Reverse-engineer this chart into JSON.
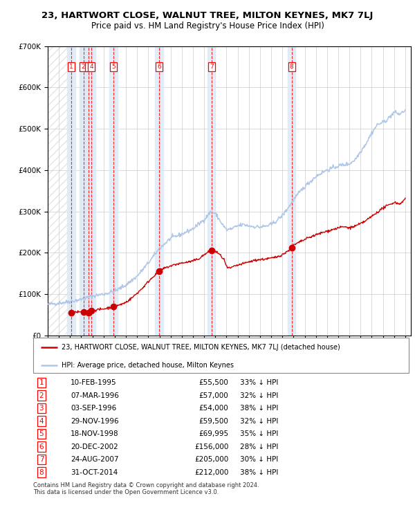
{
  "title": "23, HARTWORT CLOSE, WALNUT TREE, MILTON KEYNES, MK7 7LJ",
  "subtitle": "Price paid vs. HM Land Registry's House Price Index (HPI)",
  "transactions": [
    {
      "num": 1,
      "date": "10-FEB-1995",
      "date_val": 1995.11,
      "price": 55500,
      "pct": "33% ↓ HPI"
    },
    {
      "num": 2,
      "date": "07-MAR-1996",
      "date_val": 1996.19,
      "price": 57000,
      "pct": "32% ↓ HPI"
    },
    {
      "num": 3,
      "date": "03-SEP-1996",
      "date_val": 1996.67,
      "price": 54000,
      "pct": "38% ↓ HPI"
    },
    {
      "num": 4,
      "date": "29-NOV-1996",
      "date_val": 1996.91,
      "price": 59500,
      "pct": "32% ↓ HPI"
    },
    {
      "num": 5,
      "date": "18-NOV-1998",
      "date_val": 1998.88,
      "price": 69995,
      "pct": "35% ↓ HPI"
    },
    {
      "num": 6,
      "date": "20-DEC-2002",
      "date_val": 2002.97,
      "price": 156000,
      "pct": "28% ↓ HPI"
    },
    {
      "num": 7,
      "date": "24-AUG-2007",
      "date_val": 2007.65,
      "price": 205000,
      "pct": "30% ↓ HPI"
    },
    {
      "num": 8,
      "date": "31-OCT-2014",
      "date_val": 2014.83,
      "price": 212000,
      "pct": "38% ↓ HPI"
    }
  ],
  "legend_line1": "23, HARTWORT CLOSE, WALNUT TREE, MILTON KEYNES, MK7 7LJ (detached house)",
  "legend_line2": "HPI: Average price, detached house, Milton Keynes",
  "footer": "Contains HM Land Registry data © Crown copyright and database right 2024.\nThis data is licensed under the Open Government Licence v3.0.",
  "hpi_color": "#aec6e8",
  "price_color": "#cc0000",
  "chart_bg_color": "#dce9f5",
  "ylim": [
    0,
    700000
  ],
  "xlim": [
    1993.0,
    2025.5
  ],
  "yticks": [
    0,
    100000,
    200000,
    300000,
    400000,
    500000,
    600000,
    700000
  ],
  "hpi_anchors": [
    [
      1993.0,
      75000
    ],
    [
      1994.0,
      78000
    ],
    [
      1995.0,
      82000
    ],
    [
      1996.0,
      87000
    ],
    [
      1997.0,
      95000
    ],
    [
      1998.0,
      100000
    ],
    [
      1999.0,
      107000
    ],
    [
      2000.0,
      122000
    ],
    [
      2001.0,
      143000
    ],
    [
      2002.0,
      175000
    ],
    [
      2003.0,
      210000
    ],
    [
      2004.0,
      235000
    ],
    [
      2005.0,
      245000
    ],
    [
      2006.0,
      258000
    ],
    [
      2007.0,
      280000
    ],
    [
      2007.6,
      300000
    ],
    [
      2008.0,
      295000
    ],
    [
      2008.6,
      270000
    ],
    [
      2009.0,
      255000
    ],
    [
      2009.5,
      258000
    ],
    [
      2010.0,
      265000
    ],
    [
      2010.5,
      268000
    ],
    [
      2011.0,
      265000
    ],
    [
      2011.5,
      263000
    ],
    [
      2012.0,
      262000
    ],
    [
      2012.5,
      264000
    ],
    [
      2013.0,
      268000
    ],
    [
      2013.5,
      278000
    ],
    [
      2014.0,
      290000
    ],
    [
      2014.5,
      308000
    ],
    [
      2015.0,
      328000
    ],
    [
      2015.5,
      345000
    ],
    [
      2016.0,
      360000
    ],
    [
      2016.5,
      372000
    ],
    [
      2017.0,
      385000
    ],
    [
      2017.5,
      393000
    ],
    [
      2018.0,
      400000
    ],
    [
      2018.5,
      405000
    ],
    [
      2019.0,
      410000
    ],
    [
      2019.5,
      413000
    ],
    [
      2020.0,
      415000
    ],
    [
      2020.5,
      425000
    ],
    [
      2021.0,
      445000
    ],
    [
      2021.5,
      465000
    ],
    [
      2022.0,
      490000
    ],
    [
      2022.5,
      510000
    ],
    [
      2023.0,
      515000
    ],
    [
      2023.5,
      525000
    ],
    [
      2024.0,
      540000
    ],
    [
      2024.5,
      535000
    ],
    [
      2025.0,
      545000
    ]
  ],
  "price_anchors": [
    [
      1995.0,
      55500
    ],
    [
      1995.5,
      56000
    ],
    [
      1996.0,
      56500
    ],
    [
      1996.19,
      57000
    ],
    [
      1996.5,
      55000
    ],
    [
      1996.67,
      54000
    ],
    [
      1996.91,
      59500
    ],
    [
      1997.0,
      60500
    ],
    [
      1997.5,
      62000
    ],
    [
      1998.0,
      64000
    ],
    [
      1998.5,
      67000
    ],
    [
      1998.88,
      69995
    ],
    [
      1999.0,
      71000
    ],
    [
      1999.5,
      74000
    ],
    [
      2000.0,
      80000
    ],
    [
      2000.5,
      90000
    ],
    [
      2001.0,
      102000
    ],
    [
      2001.5,
      115000
    ],
    [
      2002.0,
      130000
    ],
    [
      2002.5,
      144000
    ],
    [
      2002.97,
      156000
    ],
    [
      2003.5,
      163000
    ],
    [
      2004.0,
      168000
    ],
    [
      2004.5,
      172000
    ],
    [
      2005.0,
      175000
    ],
    [
      2005.5,
      177000
    ],
    [
      2006.0,
      180000
    ],
    [
      2006.5,
      185000
    ],
    [
      2007.0,
      195000
    ],
    [
      2007.3,
      200000
    ],
    [
      2007.65,
      205000
    ],
    [
      2007.9,
      205000
    ],
    [
      2008.3,
      198000
    ],
    [
      2008.8,
      183000
    ],
    [
      2009.0,
      165000
    ],
    [
      2009.3,
      162000
    ],
    [
      2009.8,
      168000
    ],
    [
      2010.3,
      172000
    ],
    [
      2010.8,
      176000
    ],
    [
      2011.3,
      180000
    ],
    [
      2011.8,
      183000
    ],
    [
      2012.3,
      184000
    ],
    [
      2012.8,
      186000
    ],
    [
      2013.3,
      188000
    ],
    [
      2013.8,
      193000
    ],
    [
      2014.3,
      200000
    ],
    [
      2014.83,
      212000
    ],
    [
      2015.0,
      218000
    ],
    [
      2015.5,
      225000
    ],
    [
      2016.0,
      232000
    ],
    [
      2016.5,
      238000
    ],
    [
      2017.0,
      243000
    ],
    [
      2017.5,
      248000
    ],
    [
      2018.0,
      252000
    ],
    [
      2018.5,
      256000
    ],
    [
      2019.0,
      260000
    ],
    [
      2019.5,
      263000
    ],
    [
      2020.0,
      260000
    ],
    [
      2020.5,
      264000
    ],
    [
      2021.0,
      270000
    ],
    [
      2021.5,
      278000
    ],
    [
      2022.0,
      288000
    ],
    [
      2022.5,
      298000
    ],
    [
      2023.0,
      308000
    ],
    [
      2023.5,
      315000
    ],
    [
      2024.0,
      322000
    ],
    [
      2024.5,
      318000
    ],
    [
      2025.0,
      330000
    ]
  ]
}
